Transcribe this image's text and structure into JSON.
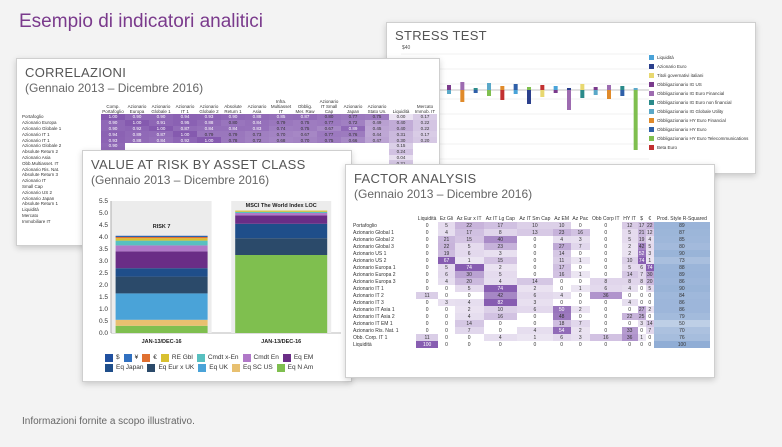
{
  "page": {
    "title": "Esempio di indicatori analitici",
    "footer": "Informazioni fornite a scopo illustrativo."
  },
  "stress": {
    "title": "STRESS TEST",
    "axis_top": "$40",
    "legend": [
      {
        "label": "Liquidità",
        "color": "#4aa3d8"
      },
      {
        "label": "Azionario Euro",
        "color": "#2b3f8c"
      },
      {
        "label": "Titoli governativi italiani",
        "color": "#e8d870"
      },
      {
        "label": "Obbligazionario IG US",
        "color": "#7a3a8c"
      },
      {
        "label": "Obbligazionario IG Euro Financial",
        "color": "#9d6bb0"
      },
      {
        "label": "Obbligazionario IG Euro non financial",
        "color": "#2a8a8a"
      },
      {
        "label": "Obbligazionario IG Globale Utility",
        "color": "#5aa8c8"
      },
      {
        "label": "Obbligazionario HY Euro Financial",
        "color": "#e08a2a"
      },
      {
        "label": "Obbligazionario HY Euro",
        "color": "#2e5fa8"
      },
      {
        "label": "Obbligazionario HY Euro Telecommunications",
        "color": "#7fbf4f"
      },
      {
        "label": "Beta Euro",
        "color": "#c23030"
      }
    ]
  },
  "correlazioni": {
    "title": "CORRELAZIONI",
    "subtitle": "(Gennaio 2013 – Dicembre 2016)",
    "headers": [
      "Comp. Portafoglio",
      "Azionario Europa",
      "Azionario Globale 1",
      "Azionario IT 1",
      "Azionario Globale 2",
      "Absolute Return 1",
      "Azionario Asia",
      "Infra. Multiasset IT",
      "Obblig. Mer. Raw",
      "Azionario IT Small Cap",
      "Azionario Japan",
      "Azionario Stato Un.",
      "Liquidità",
      "Mercato Immob. IT"
    ],
    "rows": [
      {
        "label": "Portafoglio",
        "vals": [
          "1.00",
          "0.90",
          "0.90",
          "0.94",
          "0.93",
          "0.90",
          "0.88",
          "0.85",
          "0.87",
          "0.80",
          "0.77",
          "0.75",
          "0.00",
          "0.17"
        ]
      },
      {
        "label": "Azionario Europa",
        "vals": [
          "0.90",
          "1.00",
          "0.91",
          "0.95",
          "0.88",
          "0.80",
          "0.84",
          "0.79",
          "0.75",
          "0.77",
          "0.72",
          "0.49",
          "0.40",
          "0.22"
        ]
      },
      {
        "label": "Azionario Globale 1",
        "vals": [
          "0.90",
          "0.92",
          "1.00",
          "0.87",
          "0.84",
          "0.84",
          "0.83",
          "0.74",
          "0.75",
          "0.67",
          "0.89",
          "0.45",
          "0.40",
          "0.22"
        ]
      },
      {
        "label": "Azionario IT 1",
        "vals": [
          "0.94",
          "0.89",
          "0.87",
          "1.00",
          "0.79",
          "0.79",
          "0.73",
          "0.70",
          "0.67",
          "0.77",
          "0.76",
          "0.44",
          "0.31",
          "0.17"
        ]
      },
      {
        "label": "Azionario IT 1",
        "vals": [
          "0.93",
          "0.88",
          "0.84",
          "0.92",
          "1.00",
          "0.78",
          "0.72",
          "0.68",
          "0.70",
          "0.75",
          "0.66",
          "0.47",
          "0.30",
          "0.20"
        ]
      },
      {
        "label": "Azionario Globale 2",
        "vals": [
          "0.90",
          "",
          "",
          "",
          "",
          "",
          "",
          "",
          "",
          "",
          "",
          "",
          "0.15",
          ""
        ]
      },
      {
        "label": "Absolute Return 2",
        "vals": [
          "0.88",
          "",
          "",
          "",
          "",
          "",
          "",
          "",
          "",
          "",
          "",
          "",
          "0.24",
          ""
        ]
      },
      {
        "label": "Azionario Asia",
        "vals": [
          "0.85",
          "",
          "",
          "",
          "",
          "",
          "",
          "",
          "",
          "",
          "",
          "",
          "0.04",
          ""
        ]
      },
      {
        "label": "Obb.Multiasset. IT",
        "vals": [
          "0.87",
          "",
          "",
          "",
          "",
          "",
          "",
          "",
          "",
          "",
          "",
          "",
          "0.21",
          ""
        ]
      },
      {
        "label": "Azionario Ris. Nat.",
        "vals": [
          "0.80",
          "",
          "",
          "",
          "",
          "",
          "",
          "",
          "",
          "",
          "",
          "",
          "",
          ""
        ]
      },
      {
        "label": "Absolute Return 3",
        "vals": [
          "0.77",
          "",
          "",
          "",
          "",
          "",
          "",
          "",
          "",
          "",
          "",
          "",
          "",
          ""
        ]
      },
      {
        "label": "Azionario IT",
        "vals": [
          "0.79",
          "",
          "",
          "",
          "",
          "",
          "",
          "",
          "",
          "",
          "",
          "",
          "",
          ""
        ]
      },
      {
        "label": "Small Cap",
        "vals": [
          "",
          "",
          "",
          "",
          "",
          "",
          "",
          "",
          "",
          "",
          "",
          "",
          "",
          ""
        ]
      },
      {
        "label": "Azionario US 2",
        "vals": [
          "0.77",
          "",
          "",
          "",
          "",
          "",
          "",
          "",
          "",
          "",
          "",
          "",
          "",
          ""
        ]
      },
      {
        "label": "Azionario Japan",
        "vals": [
          "0.75",
          "",
          "",
          "",
          "",
          "",
          "",
          "",
          "",
          "",
          "",
          "",
          "",
          ""
        ]
      },
      {
        "label": "Absolute Return 1",
        "vals": [
          "0.45",
          "",
          "",
          "",
          "",
          "",
          "",
          "",
          "",
          "",
          "",
          "",
          "",
          ""
        ]
      },
      {
        "label": "Liquidità",
        "vals": [
          "0.00",
          "",
          "",
          "",
          "",
          "",
          "",
          "",
          "",
          "",
          "",
          "",
          "",
          ""
        ]
      },
      {
        "label": "Mercato",
        "vals": [
          "",
          "",
          "",
          "",
          "",
          "",
          "",
          "",
          "",
          "",
          "",
          "",
          "",
          ""
        ]
      },
      {
        "label": "Immobiliare IT",
        "vals": [
          "0.17",
          "",
          "",
          "",
          "",
          "",
          "",
          "",
          "",
          "",
          "",
          "",
          "",
          ""
        ]
      }
    ]
  },
  "var": {
    "title": "VALUE AT RISK BY ASSET CLASS",
    "subtitle": "(Gennaio 2013 – Dicembre 2016)",
    "chart_data": {
      "type": "bar",
      "stacked": true,
      "categories": [
        "JAN-13/DEC-16",
        "JAN-13/DEC-16"
      ],
      "bar_titles": [
        "RISK 7",
        "MSCI The World Index LOC"
      ],
      "ylim": [
        0,
        5.5
      ],
      "yticks": [
        "5.5",
        "5.0",
        "4.5",
        "4.0",
        "3.5",
        "3.0",
        "2.5",
        "2.0",
        "1.5",
        "1.0",
        "0.5",
        "0.0"
      ],
      "series": [
        {
          "name": "Eq N Am",
          "color": "#7fbf4f",
          "values": [
            0.3,
            3.25
          ]
        },
        {
          "name": "Eq SC US",
          "color": "#e8c070",
          "values": [
            0.25,
            0.0
          ]
        },
        {
          "name": "Eq UK",
          "color": "#4aa3d8",
          "values": [
            1.1,
            0.0
          ]
        },
        {
          "name": "Eq Eur x UK",
          "color": "#2b4a6a",
          "values": [
            0.7,
            0.7
          ]
        },
        {
          "name": "Eq Japan",
          "color": "#1f4e8a",
          "values": [
            0.35,
            0.6
          ]
        },
        {
          "name": "Eq EM",
          "color": "#6a2d86",
          "values": [
            0.7,
            0.35
          ]
        },
        {
          "name": "Cmdt En",
          "color": "#b078c8",
          "values": [
            0.25,
            0.1
          ]
        },
        {
          "name": "Cmdt x-En",
          "color": "#58c0c0",
          "values": [
            0.2,
            0.05
          ]
        },
        {
          "name": "RE Gbl",
          "color": "#d8c030",
          "values": [
            0.1,
            0.05
          ]
        },
        {
          "name": "€",
          "color": "#e07030",
          "values": [
            0.05,
            0.0
          ]
        },
        {
          "name": "¥",
          "color": "#3070c0",
          "values": [
            0.02,
            0.0
          ]
        },
        {
          "name": "$",
          "color": "#2050a0",
          "values": [
            0.03,
            0.0
          ]
        }
      ],
      "legend": [
        "$",
        "¥",
        "€",
        "RE Gbl",
        "Cmdt x-En",
        "Cmdt En",
        "Eq EM",
        "Eq Japan",
        "Eq Eur x UK",
        "Eq UK",
        "Eq SC US",
        "Eq N Am"
      ]
    }
  },
  "factor": {
    "title": "FACTOR ANALYSIS",
    "subtitle": "(Gennaio 2013 – Dicembre 2016)",
    "headers": [
      "Liquidità",
      "Ez Gli",
      "Az Eur x IT",
      "Az IT Lg Cap",
      "Az IT Sm Cap",
      "Az EM",
      "Az Pac",
      "Obb Corp IT",
      "HY IT",
      "$",
      "€",
      "Prod. Style R-Squared"
    ],
    "rows": [
      {
        "label": "Portafoglio",
        "vals": [
          "0",
          "5",
          "22",
          "17",
          "10",
          "10",
          "0",
          "0",
          "12",
          "17",
          "22",
          "89"
        ]
      },
      {
        "label": "Azionario Global 1",
        "vals": [
          "0",
          "4",
          "17",
          "8",
          "13",
          "23",
          "16",
          "0",
          "5",
          "21",
          "12",
          "87"
        ]
      },
      {
        "label": "Azionario Global 2",
        "vals": [
          "0",
          "21",
          "15",
          "40",
          "0",
          "4",
          "3",
          "0",
          "5",
          "19",
          "4",
          "85"
        ]
      },
      {
        "label": "Azionario Global 3",
        "vals": [
          "0",
          "22",
          "5",
          "23",
          "0",
          "27",
          "7",
          "0",
          "2",
          "42",
          "5",
          "80"
        ]
      },
      {
        "label": "Azionario US 1",
        "vals": [
          "0",
          "19",
          "6",
          "3",
          "0",
          "14",
          "0",
          "0",
          "2",
          "52",
          "3",
          "90"
        ]
      },
      {
        "label": "Azionario US 2",
        "vals": [
          "0",
          "67",
          "1",
          "15",
          "0",
          "11",
          "1",
          "0",
          "10",
          "74",
          "1",
          "73"
        ]
      },
      {
        "label": "Azionario Europa 1",
        "vals": [
          "0",
          "5",
          "74",
          "2",
          "0",
          "17",
          "0",
          "0",
          "5",
          "6",
          "74",
          "88"
        ]
      },
      {
        "label": "Azionario Europa 2",
        "vals": [
          "0",
          "6",
          "30",
          "5",
          "0",
          "16",
          "1",
          "0",
          "14",
          "7",
          "30",
          "89"
        ]
      },
      {
        "label": "Azionario Europa 3",
        "vals": [
          "0",
          "4",
          "20",
          "4",
          "14",
          "0",
          "0",
          "8",
          "8",
          "8",
          "20",
          "86"
        ]
      },
      {
        "label": "Azionario IT 1",
        "vals": [
          "0",
          "0",
          "5",
          "74",
          "2",
          "0",
          "1",
          "6",
          "4",
          "0",
          "5",
          "90"
        ]
      },
      {
        "label": "Azionario IT 2",
        "vals": [
          "11",
          "0",
          "0",
          "42",
          "6",
          "4",
          "0",
          "36",
          "0",
          "0",
          "0",
          "84"
        ]
      },
      {
        "label": "Azionario IT 3",
        "vals": [
          "0",
          "3",
          "4",
          "82",
          "3",
          "0",
          "0",
          "0",
          "4",
          "0",
          "0",
          "86"
        ]
      },
      {
        "label": "Azionario IT Asia 1",
        "vals": [
          "0",
          "0",
          "2",
          "10",
          "6",
          "50",
          "2",
          "0",
          "0",
          "27",
          "2",
          "86"
        ]
      },
      {
        "label": "Azionario IT Asia 2",
        "vals": [
          "0",
          "0",
          "4",
          "16",
          "0",
          "48",
          "0",
          "0",
          "22",
          "25",
          "0",
          "79"
        ]
      },
      {
        "label": "Azionario IT EM 1",
        "vals": [
          "0",
          "0",
          "14",
          "0",
          "0",
          "18",
          "7",
          "0",
          "0",
          "3",
          "14",
          "50"
        ]
      },
      {
        "label": "Azionario Ris. Nat. 1",
        "vals": [
          "0",
          "0",
          "7",
          "0",
          "4",
          "54",
          "2",
          "0",
          "33",
          "0",
          "7",
          "70"
        ]
      },
      {
        "label": "Obb. Corp. IT 1",
        "vals": [
          "11",
          "0",
          "0",
          "4",
          "1",
          "6",
          "3",
          "16",
          "36",
          "1",
          "0",
          "76"
        ]
      },
      {
        "label": "Liquidità",
        "vals": [
          "100",
          "0",
          "0",
          "0",
          "0",
          "0",
          "0",
          "0",
          "0",
          "0",
          "0",
          "100"
        ]
      }
    ]
  }
}
